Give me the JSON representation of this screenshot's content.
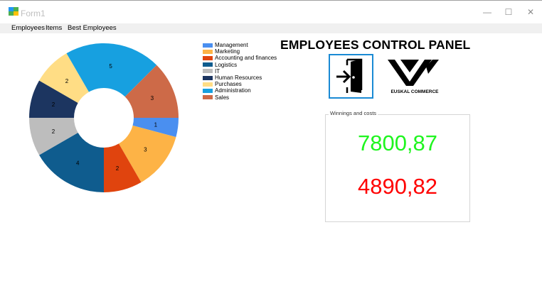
{
  "window": {
    "title": "Form1",
    "minimize_glyph": "—",
    "maximize_glyph": "☐",
    "close_glyph": "✕"
  },
  "menu": {
    "items": [
      "Employees",
      "Items",
      "Best Employees"
    ]
  },
  "header": {
    "title": "EMPLOYEES CONTROL PANEL"
  },
  "toolbar": {
    "exit_icon": "exit-door-icon",
    "logo_text": "EUSKAL COMMERCE"
  },
  "summary": {
    "group_caption": "Winnings and costs",
    "winnings": "7800,87",
    "costs": "4890,82",
    "winnings_color": "#1ff51f",
    "costs_color": "#ff0000"
  },
  "chart_data": {
    "type": "pie",
    "donut": true,
    "legend_position": "right",
    "categories": [
      "Management",
      "Marketing",
      "Accounting and finances",
      "Logistics",
      "IT",
      "Human Resources",
      "Purchases",
      "Administration",
      "Sales"
    ],
    "values": [
      1,
      3,
      2,
      4,
      2,
      2,
      2,
      5,
      3
    ],
    "colors": [
      "#4a8ff0",
      "#fdb346",
      "#e0440e",
      "#0f5c8e",
      "#bdbdbd",
      "#1c3560",
      "#ffdd85",
      "#17a0e0",
      "#cd6a48"
    ]
  }
}
